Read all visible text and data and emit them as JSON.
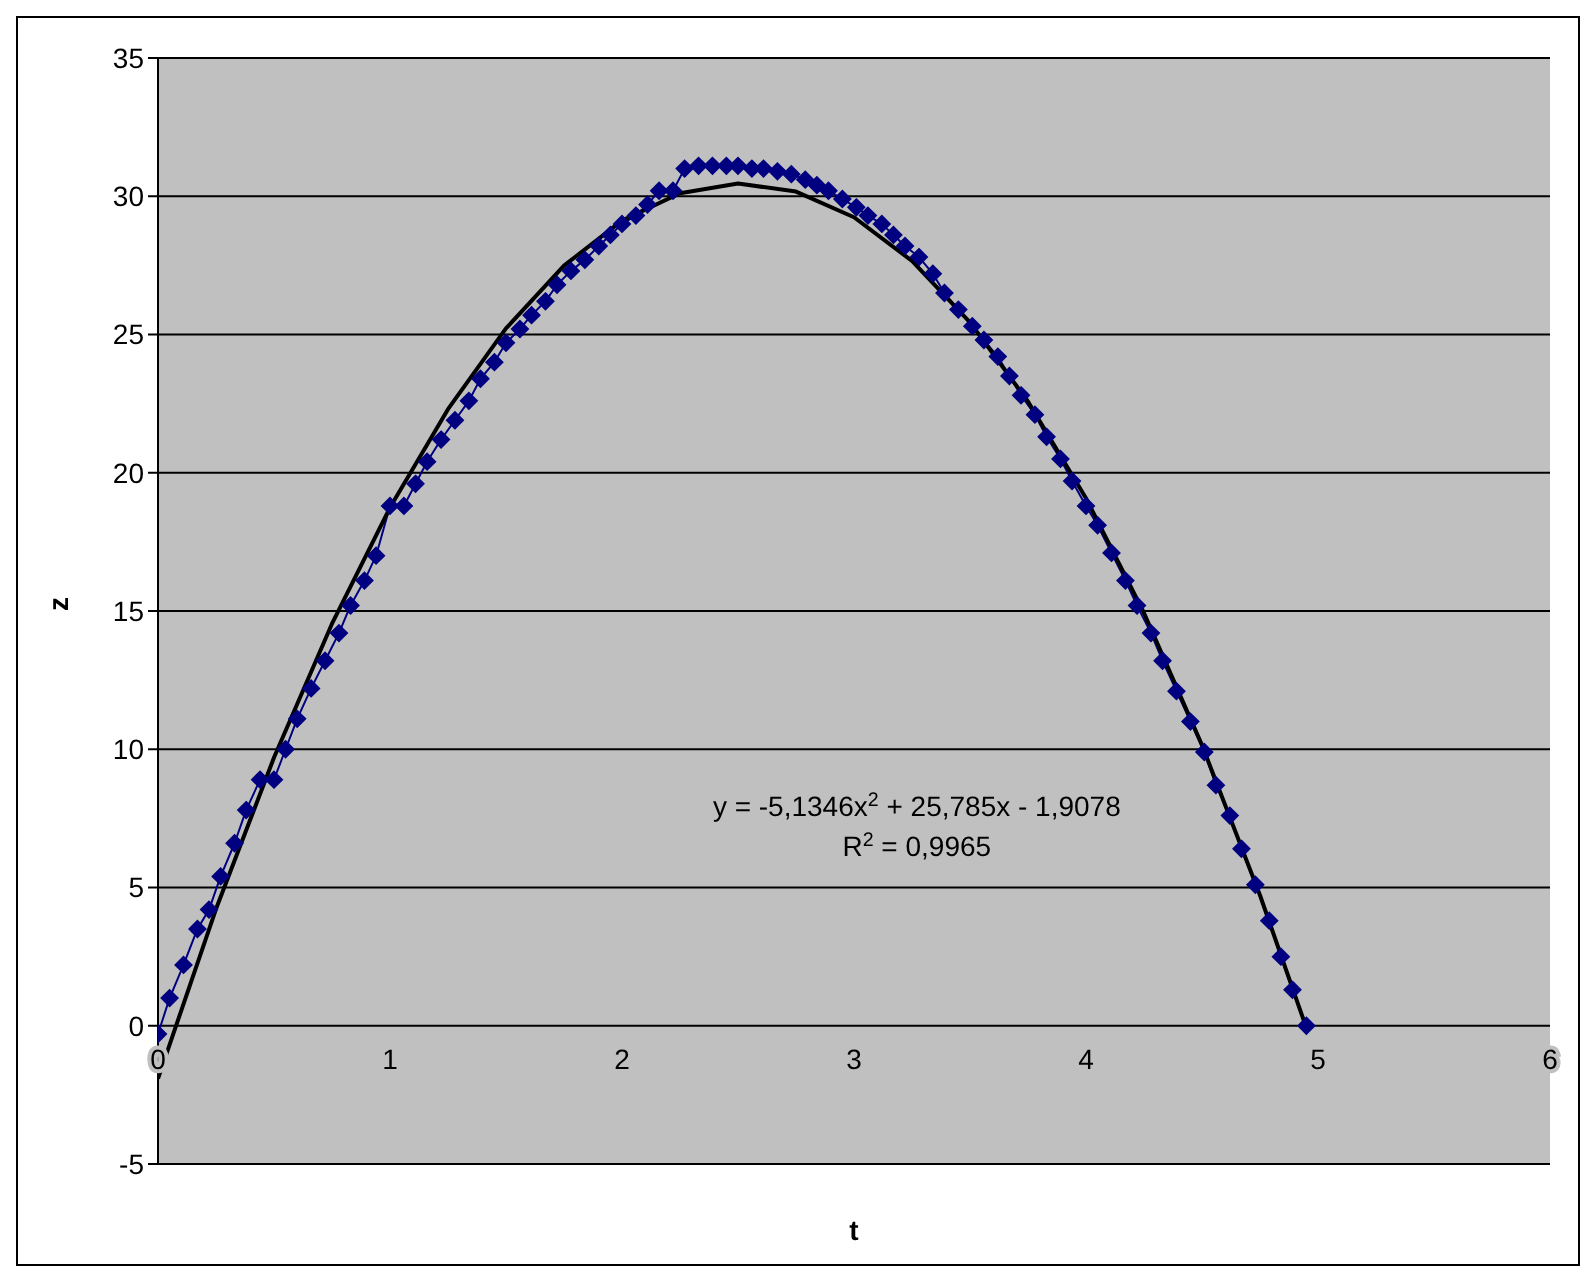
{
  "chart_data": {
    "type": "line",
    "xlabel": "t",
    "ylabel": "z",
    "xlim": [
      0,
      6
    ],
    "xticks": [
      0,
      1,
      2,
      3,
      4,
      5,
      6
    ],
    "ylim": [
      -5,
      35
    ],
    "yticks": [
      -5,
      0,
      5,
      10,
      15,
      20,
      25,
      30,
      35
    ],
    "grid": "y",
    "marker": "diamond",
    "line_style": "solid",
    "annotations": [
      "y = -5,1346x$^{2}$ + 25,785x - 1,9078",
      "R$^{2}$ = 0,9965"
    ],
    "series": [
      {
        "color": "#000080",
        "x": [
          0,
          0.05,
          0.11,
          0.17,
          0.22,
          0.27,
          0.33,
          0.38,
          0.44,
          0.5,
          0.55,
          0.6,
          0.66,
          0.72,
          0.78,
          0.83,
          0.89,
          0.94,
          1.0,
          1.06,
          1.11,
          1.16,
          1.22,
          1.28,
          1.34,
          1.39,
          1.45,
          1.5,
          1.56,
          1.61,
          1.67,
          1.72,
          1.78,
          1.84,
          1.9,
          1.95,
          2.0,
          2.06,
          2.11,
          2.16,
          2.22,
          2.27,
          2.33,
          2.39,
          2.45,
          2.5,
          2.56,
          2.61,
          2.67,
          2.73,
          2.79,
          2.84,
          2.89,
          2.95,
          3.01,
          3.06,
          3.12,
          3.17,
          3.22,
          3.28,
          3.34,
          3.39,
          3.45,
          3.51,
          3.56,
          3.62,
          3.67,
          3.72,
          3.78,
          3.83,
          3.89,
          3.94,
          4.0,
          4.05,
          4.11,
          4.17,
          4.22,
          4.28,
          4.33,
          4.39,
          4.45,
          4.51,
          4.56,
          4.62,
          4.67,
          4.73,
          4.79,
          4.84,
          4.89,
          4.95
        ],
        "values": [
          -0.3,
          1.0,
          2.2,
          3.5,
          4.2,
          5.4,
          6.6,
          7.8,
          8.9,
          8.9,
          10.0,
          11.1,
          12.2,
          13.2,
          14.2,
          15.2,
          16.1,
          17.0,
          18.8,
          18.8,
          19.6,
          20.4,
          21.2,
          21.9,
          22.6,
          23.4,
          24.0,
          24.7,
          25.2,
          25.7,
          26.2,
          26.8,
          27.3,
          27.7,
          28.2,
          28.6,
          29.0,
          29.3,
          29.7,
          30.2,
          30.2,
          31.0,
          31.1,
          31.1,
          31.1,
          31.1,
          31.0,
          31.0,
          30.9,
          30.8,
          30.6,
          30.4,
          30.2,
          29.9,
          29.6,
          29.3,
          29.0,
          28.6,
          28.2,
          27.8,
          27.2,
          26.5,
          25.9,
          25.3,
          24.8,
          24.2,
          23.5,
          22.8,
          22.1,
          21.3,
          20.5,
          19.7,
          18.8,
          18.1,
          17.1,
          16.1,
          15.2,
          14.2,
          13.2,
          12.1,
          11.0,
          9.9,
          8.7,
          7.6,
          6.4,
          5.1,
          3.8,
          2.5,
          1.3,
          0
        ]
      },
      {
        "type": "line",
        "color": "#000000",
        "marker": "none",
        "x": [
          0,
          0.25,
          0.5,
          0.75,
          1,
          1.25,
          1.5,
          1.75,
          2,
          2.25,
          2.5,
          2.75,
          3,
          3.25,
          3.5,
          3.75,
          4,
          4.25,
          4.5,
          4.75,
          4.95
        ],
        "values": [
          -1.91,
          4.22,
          9.7,
          14.54,
          18.74,
          22.3,
          25.22,
          27.49,
          29.12,
          30.11,
          30.46,
          30.17,
          29.24,
          27.66,
          25.44,
          22.58,
          19.08,
          14.93,
          10.15,
          4.72,
          -0.08
        ]
      }
    ]
  }
}
